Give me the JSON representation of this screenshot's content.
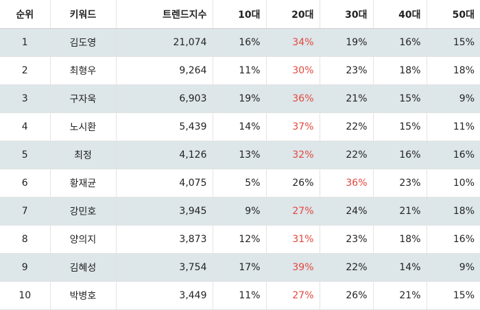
{
  "headers": [
    "순위",
    "키워드",
    "트렌드지수",
    "10대",
    "20대",
    "30대",
    "40대",
    "50대"
  ],
  "highlight_color": "#e2463c",
  "rows": [
    {
      "rank": "1",
      "keyword": "김도영",
      "trend": "21,074",
      "ages": [
        "16%",
        "34%",
        "19%",
        "16%",
        "15%"
      ],
      "highlight": 1
    },
    {
      "rank": "2",
      "keyword": "최형우",
      "trend": "9,264",
      "ages": [
        "11%",
        "30%",
        "23%",
        "18%",
        "18%"
      ],
      "highlight": 1
    },
    {
      "rank": "3",
      "keyword": "구자욱",
      "trend": "6,903",
      "ages": [
        "19%",
        "36%",
        "21%",
        "15%",
        "9%"
      ],
      "highlight": 1
    },
    {
      "rank": "4",
      "keyword": "노시환",
      "trend": "5,439",
      "ages": [
        "14%",
        "37%",
        "22%",
        "15%",
        "11%"
      ],
      "highlight": 1
    },
    {
      "rank": "5",
      "keyword": "최정",
      "trend": "4,126",
      "ages": [
        "13%",
        "32%",
        "22%",
        "16%",
        "16%"
      ],
      "highlight": 1
    },
    {
      "rank": "6",
      "keyword": "황재균",
      "trend": "4,075",
      "ages": [
        "5%",
        "26%",
        "36%",
        "23%",
        "10%"
      ],
      "highlight": 2
    },
    {
      "rank": "7",
      "keyword": "강민호",
      "trend": "3,945",
      "ages": [
        "9%",
        "27%",
        "24%",
        "21%",
        "18%"
      ],
      "highlight": 1
    },
    {
      "rank": "8",
      "keyword": "양의지",
      "trend": "3,873",
      "ages": [
        "12%",
        "31%",
        "23%",
        "18%",
        "16%"
      ],
      "highlight": 1
    },
    {
      "rank": "9",
      "keyword": "김혜성",
      "trend": "3,754",
      "ages": [
        "17%",
        "39%",
        "22%",
        "14%",
        "9%"
      ],
      "highlight": 1
    },
    {
      "rank": "10",
      "keyword": "박병호",
      "trend": "3,449",
      "ages": [
        "11%",
        "27%",
        "26%",
        "21%",
        "15%"
      ],
      "highlight": 1
    }
  ]
}
